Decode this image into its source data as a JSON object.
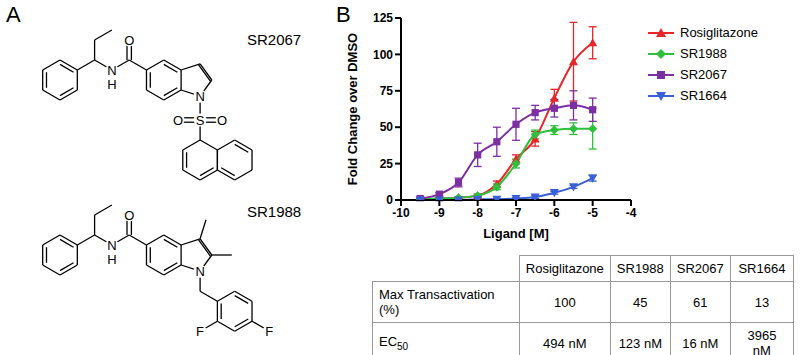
{
  "panel_labels": [
    "A",
    "B"
  ],
  "structures": [
    {
      "name": "SR2067",
      "atoms": [
        "N",
        "H",
        "O",
        "N",
        "S",
        "O",
        "O"
      ]
    },
    {
      "name": "SR1988",
      "atoms": [
        "N",
        "H",
        "O",
        "N",
        "F",
        "F"
      ]
    }
  ],
  "chart_data": {
    "type": "line",
    "x_label": "Ligand [M]",
    "y_label": "Fold Change over DMSO",
    "xlim": [
      -10,
      -4
    ],
    "xticks": [
      -10,
      -9,
      -8,
      -7,
      -6,
      -5,
      -4
    ],
    "ylim": [
      0,
      125
    ],
    "yticks": [
      0,
      25,
      50,
      75,
      100,
      125
    ],
    "grid": false,
    "legend": "right",
    "x": [
      -9.5,
      -9,
      -8.5,
      -8,
      -7.5,
      -7,
      -6.5,
      -6,
      -5.5,
      -5
    ],
    "series": [
      {
        "name": "Rosiglitazone",
        "color": "#e8262a",
        "marker": "triangle",
        "values": [
          0.5,
          1,
          1.5,
          3,
          11,
          28,
          42,
          70,
          95,
          108
        ],
        "errors": [
          0.5,
          0.5,
          0.5,
          1,
          2,
          3,
          5,
          6,
          27,
          11
        ]
      },
      {
        "name": "SR1988",
        "color": "#2fbf3a",
        "marker": "diamond",
        "values": [
          0.5,
          1,
          1.5,
          3,
          9,
          25,
          45,
          48,
          49,
          49
        ],
        "errors": [
          0.5,
          0.5,
          0.5,
          1,
          2,
          3,
          3,
          3,
          4,
          14
        ]
      },
      {
        "name": "SR2067",
        "color": "#7b2fa0",
        "marker": "square",
        "values": [
          1,
          4,
          12,
          31,
          40,
          52,
          60,
          63,
          65,
          62
        ],
        "errors": [
          1,
          1,
          3,
          8,
          10,
          11,
          5,
          6,
          10,
          8
        ]
      },
      {
        "name": "SR1664",
        "color": "#3b5fd6",
        "marker": "triangle-down",
        "values": [
          0,
          0,
          0,
          0.5,
          0.5,
          1,
          2,
          5,
          9,
          15
        ],
        "errors": [
          0.5,
          0.5,
          0.5,
          0.5,
          0.5,
          0.5,
          1,
          1,
          1,
          2
        ]
      }
    ]
  },
  "table": {
    "columns": [
      "Rosiglitazone",
      "SR1988",
      "SR2067",
      "SR1664"
    ],
    "rows": [
      {
        "label": "Max Transactivation (%)",
        "values": [
          100,
          45,
          61,
          13
        ]
      },
      {
        "label": {
          "text": "EC",
          "subscript": "50"
        },
        "values": [
          "494 nM",
          "123 nM",
          "16 nM",
          "3965 nM"
        ]
      }
    ]
  }
}
